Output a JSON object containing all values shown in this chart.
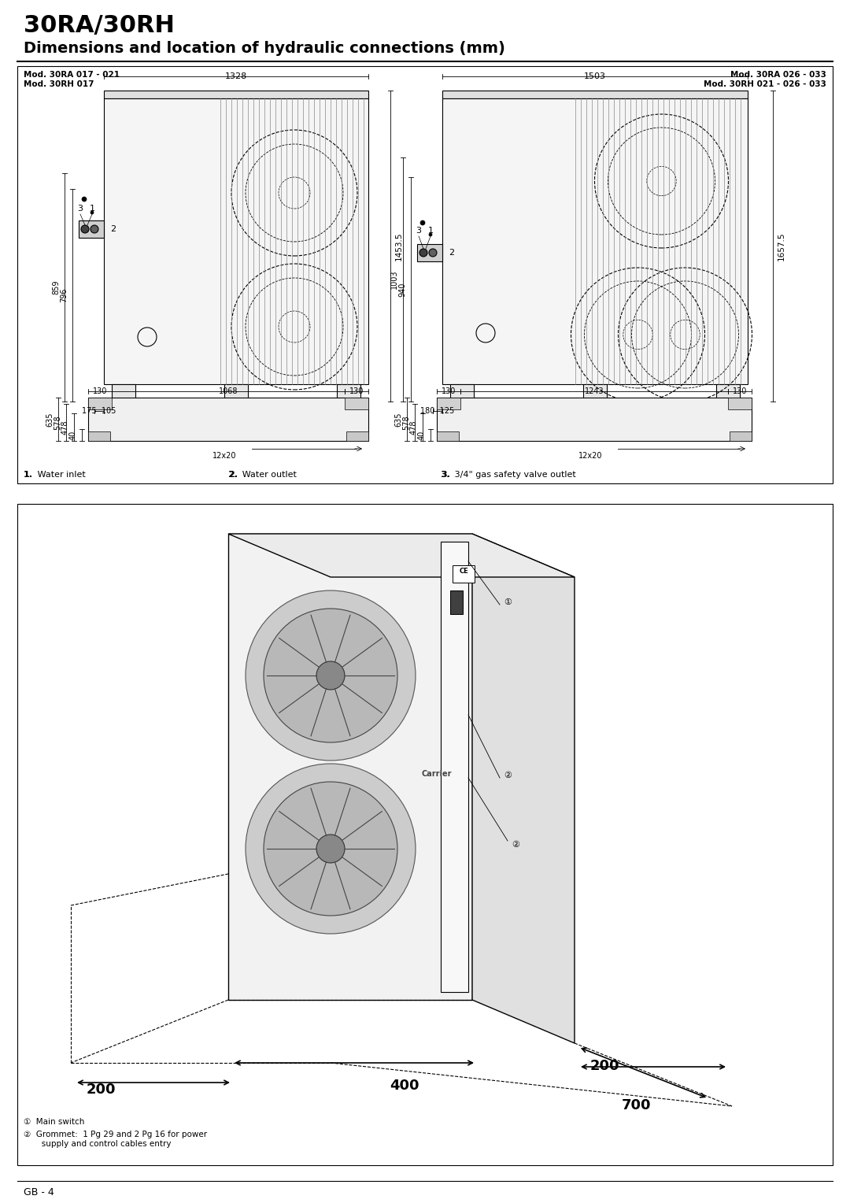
{
  "title": "30RA/30RH",
  "subtitle": "Dimensions and location of hydraulic connections (mm)",
  "bg_color": "#ffffff",
  "footer": "GB - 4",
  "top_box": {
    "left_label1": "Mod. 30RA 017 - 021",
    "left_label2": "Mod. 30RH 017",
    "right_label1": "Mod. 30RA 026 - 033",
    "right_label2": "Mod. 30RH 021 - 026 - 033"
  },
  "legend": {
    "item1": "1.  Water inlet",
    "item2": "2.  Water outlet",
    "item3": "3.  3/4\" gas safety valve outlet"
  },
  "bottom_legend": {
    "item1": "①  Main switch",
    "item2": "②  Grommet:  1 Pg 29 and 2 Pg 16 for power\n       supply and control cables entry"
  },
  "iso_dims": {
    "d1": "200",
    "d2": "200",
    "d3": "700",
    "d4": "400"
  }
}
